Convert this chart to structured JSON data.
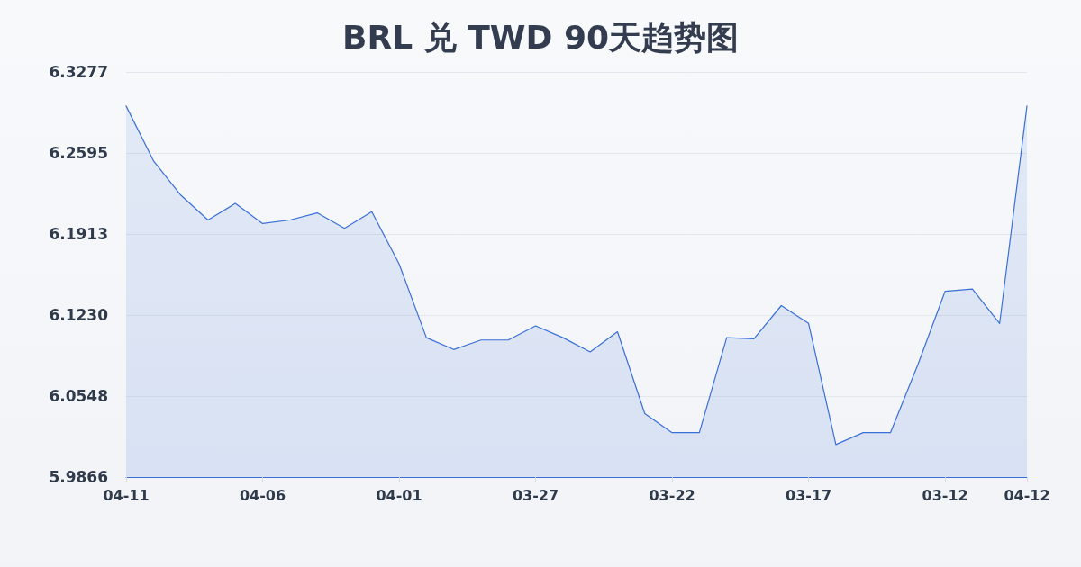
{
  "chart_data": {
    "type": "area",
    "title": "BRL 兑 TWD 90天趋势图",
    "categories": [
      "04-11",
      null,
      null,
      null,
      null,
      "04-06",
      null,
      null,
      null,
      null,
      "04-01",
      null,
      null,
      null,
      null,
      "03-27",
      null,
      null,
      null,
      null,
      "03-22",
      null,
      null,
      null,
      null,
      "03-17",
      null,
      null,
      null,
      null,
      "03-12",
      null,
      null,
      "04-12"
    ],
    "series": [
      {
        "color": "#3a6fd8",
        "values": [
          6.299,
          6.253,
          6.224,
          6.203,
          6.217,
          6.2,
          6.203,
          6.209,
          6.196,
          6.21,
          6.166,
          6.104,
          6.094,
          6.102,
          6.102,
          6.114,
          6.104,
          6.092,
          6.109,
          6.04,
          6.024,
          6.024,
          6.104,
          6.103,
          6.131,
          6.116,
          6.014,
          6.024,
          6.024,
          6.081,
          6.143,
          6.145,
          6.116,
          6.299
        ]
      }
    ],
    "ylim": [
      5.9866,
      6.3277
    ],
    "yticks": [
      5.9866,
      6.0548,
      {
        "value": 6.123,
        "label": "6.1230"
      },
      6.1913,
      6.2595,
      6.3277
    ],
    "grid": "y",
    "marker": "none",
    "line_style": "solid"
  }
}
